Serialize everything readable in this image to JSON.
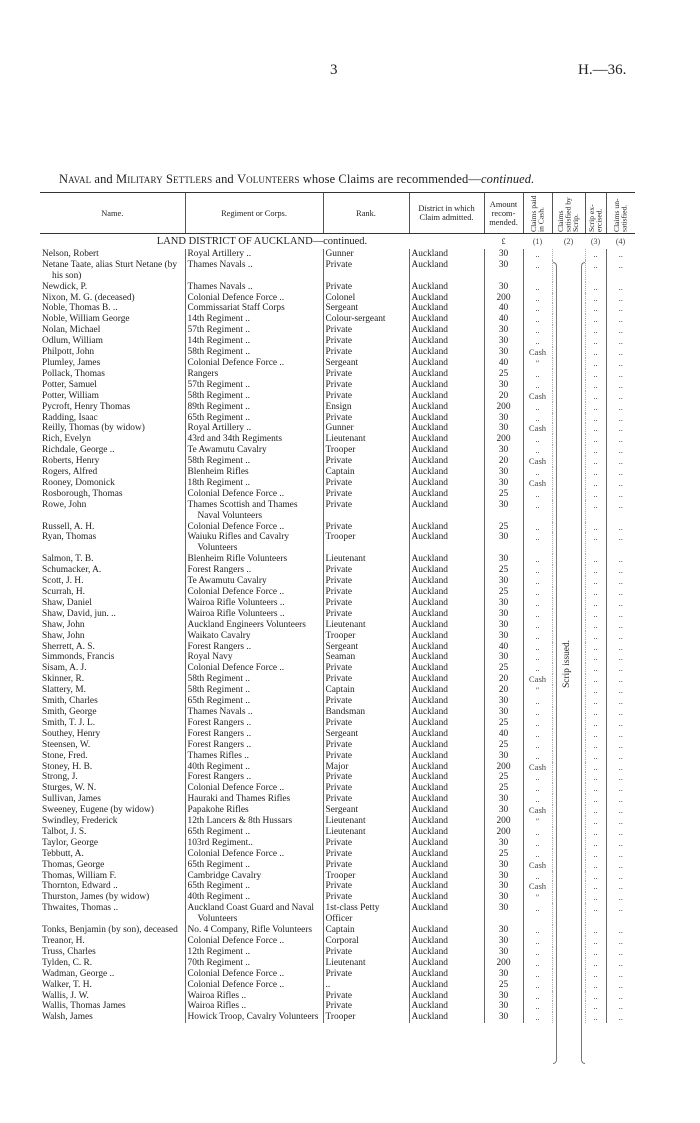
{
  "page": {
    "number": "3",
    "reference": "H.—36."
  },
  "title": {
    "part1": "Naval",
    "and1": " and ",
    "part2": "Military",
    "part3": " ",
    "part4": "Settlers",
    "and2": " and ",
    "part5": "Volunteers",
    "rest": " whose Claims are recommended—",
    "cont": "continued."
  },
  "columns": {
    "name": "Name.",
    "regiment": "Regiment or Corps.",
    "rank": "Rank.",
    "district": "District in which Claim admitted.",
    "amount": "Amount recom-mended.",
    "c1": "Claims paid in Cash.",
    "c2": "Claims satisfied by Scrip.",
    "c3": "Scrip ex-ercised.",
    "c4": "Claims un-satisfied."
  },
  "section": {
    "heading": "LAND DISTRICT OF AUCKLAND—continued.",
    "currency": "£",
    "n1": "(1)",
    "n2": "(2)",
    "n3": "(3)",
    "n4": "(4)"
  },
  "scrip_note": "Scrip issued.",
  "rows": [
    {
      "name": "Nelson, Robert",
      "regiment": "Royal Artillery ..",
      "rank": "Gunner",
      "district": "Auckland",
      "amount": "30",
      "c1": "..",
      "c3": "..",
      "c4": ".."
    },
    {
      "name": "Netane Taate, alias Sturt Netane (by his son)",
      "regiment": "Thames Navals ..",
      "rank": "Private",
      "district": "Auckland",
      "amount": "30",
      "c1": "..",
      "c3": "..",
      "c4": ".."
    },
    {
      "name": "Newdick, P.",
      "regiment": "Thames Navals ..",
      "rank": "Private",
      "district": "Auckland",
      "amount": "30",
      "c1": "..",
      "c3": "..",
      "c4": ".."
    },
    {
      "name": "Nixon, M. G. (deceased)",
      "regiment": "Colonial Defence Force ..",
      "rank": "Colonel",
      "district": "Auckland",
      "amount": "200",
      "c1": "..",
      "c3": "..",
      "c4": ".."
    },
    {
      "name": "Noble, Thomas B. ..",
      "regiment": "Commissariat Staff Corps",
      "rank": "Sergeant",
      "district": "Auckland",
      "amount": "40",
      "c1": "..",
      "c3": "..",
      "c4": ".."
    },
    {
      "name": "Noble, William George",
      "regiment": "14th Regiment ..",
      "rank": "Colour-sergeant",
      "district": "Auckland",
      "amount": "40",
      "c1": "..",
      "c3": "..",
      "c4": ".."
    },
    {
      "name": "Nolan, Michael",
      "regiment": "57th Regiment ..",
      "rank": "Private",
      "district": "Auckland",
      "amount": "30",
      "c1": "..",
      "c3": "..",
      "c4": ".."
    },
    {
      "name": "Odlum, William",
      "regiment": "14th Regiment ..",
      "rank": "Private",
      "district": "Auckland",
      "amount": "30",
      "c1": "..",
      "c3": "..",
      "c4": ".."
    },
    {
      "name": "Philpott, John",
      "regiment": "58th Regiment ..",
      "rank": "Private",
      "district": "Auckland",
      "amount": "30",
      "c1": "Cash",
      "c3": "..",
      "c4": ".."
    },
    {
      "name": "Plumley, James",
      "regiment": "Colonial Defence Force ..",
      "rank": "Sergeant",
      "district": "Auckland",
      "amount": "40",
      "c1": "″",
      "c3": "..",
      "c4": ".."
    },
    {
      "name": "Pollack, Thomas",
      "regiment": "Rangers",
      "rank": "Private",
      "district": "Auckland",
      "amount": "25",
      "c1": "..",
      "c3": "..",
      "c4": ".."
    },
    {
      "name": "Potter, Samuel",
      "regiment": "57th Regiment ..",
      "rank": "Private",
      "district": "Auckland",
      "amount": "30",
      "c1": "..",
      "c3": "..",
      "c4": ".."
    },
    {
      "name": "Potter, William",
      "regiment": "58th Regiment ..",
      "rank": "Private",
      "district": "Auckland",
      "amount": "20",
      "c1": "Cash",
      "c3": "..",
      "c4": ".."
    },
    {
      "name": "Pycroft, Henry Thomas",
      "regiment": "89th Regiment ..",
      "rank": "Ensign",
      "district": "Auckland",
      "amount": "200",
      "c1": "..",
      "c3": "..",
      "c4": ".."
    },
    {
      "name": "Radding, Isaac",
      "regiment": "65th Regiment ..",
      "rank": "Private",
      "district": "Auckland",
      "amount": "30",
      "c1": "..",
      "c3": "..",
      "c4": ".."
    },
    {
      "name": "Reilly, Thomas (by widow)",
      "regiment": "Royal Artillery ..",
      "rank": "Gunner",
      "district": "Auckland",
      "amount": "30",
      "c1": "Cash",
      "c3": "..",
      "c4": ".."
    },
    {
      "name": "Rich, Evelyn",
      "regiment": "43rd and 34th Regiments",
      "rank": "Lieutenant",
      "district": "Auckland",
      "amount": "200",
      "c1": "..",
      "c3": "..",
      "c4": ".."
    },
    {
      "name": "Richdale, George ..",
      "regiment": "Te Awamutu Cavalry",
      "rank": "Trooper",
      "district": "Auckland",
      "amount": "30",
      "c1": "..",
      "c3": "..",
      "c4": ".."
    },
    {
      "name": "Roberts, Henry",
      "regiment": "58th Regiment ..",
      "rank": "Private",
      "district": "Auckland",
      "amount": "20",
      "c1": "Cash",
      "c3": "..",
      "c4": ".."
    },
    {
      "name": "Rogers, Alfred",
      "regiment": "Blenheim Rifles",
      "rank": "Captain",
      "district": "Auckland",
      "amount": "30",
      "c1": "..",
      "c3": "..",
      "c4": ".."
    },
    {
      "name": "Rooney, Domonick",
      "regiment": "18th Regiment ..",
      "rank": "Private",
      "district": "Auckland",
      "amount": "30",
      "c1": "Cash",
      "c3": "..",
      "c4": ".."
    },
    {
      "name": "Rosborough, Thomas",
      "regiment": "Colonial Defence Force ..",
      "rank": "Private",
      "district": "Auckland",
      "amount": "25",
      "c1": "..",
      "c3": "..",
      "c4": ".."
    },
    {
      "name": "Rowe, John",
      "regiment": "Thames Scottish and Thames Naval Volunteers",
      "rank": "Private",
      "district": "Auckland",
      "amount": "30",
      "c1": "..",
      "c3": "..",
      "c4": ".."
    },
    {
      "name": "Russell, A. H.",
      "regiment": "Colonial Defence Force ..",
      "rank": "Private",
      "district": "Auckland",
      "amount": "25",
      "c1": "..",
      "c3": "..",
      "c4": ".."
    },
    {
      "name": "Ryan, Thomas",
      "regiment": "Waiuku Rifles and Cavalry Volunteers",
      "rank": "Trooper",
      "district": "Auckland",
      "amount": "30",
      "c1": "..",
      "c3": "..",
      "c4": ".."
    },
    {
      "name": "Salmon, T. B.",
      "regiment": "Blenheim Rifle Volunteers",
      "rank": "Lieutenant",
      "district": "Auckland",
      "amount": "30",
      "c1": "..",
      "c3": "..",
      "c4": ".."
    },
    {
      "name": "Schumacker, A.",
      "regiment": "Forest Rangers ..",
      "rank": "Private",
      "district": "Auckland",
      "amount": "25",
      "c1": "..",
      "c3": "..",
      "c4": ".."
    },
    {
      "name": "Scott, J. H.",
      "regiment": "Te Awamutu Cavalry",
      "rank": "Private",
      "district": "Auckland",
      "amount": "30",
      "c1": "..",
      "c3": "..",
      "c4": ".."
    },
    {
      "name": "Scurrah, H.",
      "regiment": "Colonial Defence Force ..",
      "rank": "Private",
      "district": "Auckland",
      "amount": "25",
      "c1": "..",
      "c3": "..",
      "c4": ".."
    },
    {
      "name": "Shaw, Daniel",
      "regiment": "Wairoa Rifle Volunteers ..",
      "rank": "Private",
      "district": "Auckland",
      "amount": "30",
      "c1": "..",
      "c3": "..",
      "c4": ".."
    },
    {
      "name": "Shaw, David, jun. ..",
      "regiment": "Wairoa Rifle Volunteers ..",
      "rank": "Private",
      "district": "Auckland",
      "amount": "30",
      "c1": "..",
      "c3": "..",
      "c4": ".."
    },
    {
      "name": "Shaw, John",
      "regiment": "Auckland Engineers Volunteers",
      "rank": "Lieutenant",
      "district": "Auckland",
      "amount": "30",
      "c1": "..",
      "c3": "..",
      "c4": ".."
    },
    {
      "name": "Shaw, John",
      "regiment": "Waikato Cavalry",
      "rank": "Trooper",
      "district": "Auckland",
      "amount": "30",
      "c1": "..",
      "c3": "..",
      "c4": ".."
    },
    {
      "name": "Sherrett, A. S.",
      "regiment": "Forest Rangers ..",
      "rank": "Sergeant",
      "district": "Auckland",
      "amount": "40",
      "c1": "..",
      "c3": "..",
      "c4": ".."
    },
    {
      "name": "Simmonds, Francis",
      "regiment": "Royal Navy",
      "rank": "Seaman",
      "district": "Auckland",
      "amount": "30",
      "c1": "..",
      "c3": "..",
      "c4": ".."
    },
    {
      "name": "Sisam, A. J.",
      "regiment": "Colonial Defence Force ..",
      "rank": "Private",
      "district": "Auckland",
      "amount": "25",
      "c1": "..",
      "c3": "..",
      "c4": ".."
    },
    {
      "name": "Skinner, R.",
      "regiment": "58th Regiment ..",
      "rank": "Private",
      "district": "Auckland",
      "amount": "20",
      "c1": "Cash",
      "c3": "..",
      "c4": ".."
    },
    {
      "name": "Slattery, M.",
      "regiment": "58th Regiment ..",
      "rank": "Captain",
      "district": "Auckland",
      "amount": "20",
      "c1": "″",
      "c3": "..",
      "c4": ".."
    },
    {
      "name": "Smith, Charles",
      "regiment": "65th Regiment ..",
      "rank": "Private",
      "district": "Auckland",
      "amount": "30",
      "c1": "..",
      "c3": "..",
      "c4": ".."
    },
    {
      "name": "Smith, George",
      "regiment": "Thames Navals ..",
      "rank": "Bandsman",
      "district": "Auckland",
      "amount": "30",
      "c1": "..",
      "c3": "..",
      "c4": ".."
    },
    {
      "name": "Smith, T. J. L.",
      "regiment": "Forest Rangers ..",
      "rank": "Private",
      "district": "Auckland",
      "amount": "25",
      "c1": "..",
      "c3": "..",
      "c4": ".."
    },
    {
      "name": "Southey, Henry",
      "regiment": "Forest Rangers ..",
      "rank": "Sergeant",
      "district": "Auckland",
      "amount": "40",
      "c1": "..",
      "c3": "..",
      "c4": ".."
    },
    {
      "name": "Steensen, W.",
      "regiment": "Forest Rangers ..",
      "rank": "Private",
      "district": "Auckland",
      "amount": "25",
      "c1": "..",
      "c3": "..",
      "c4": ".."
    },
    {
      "name": "Stone, Fred.",
      "regiment": "Thames Rifles ..",
      "rank": "Private",
      "district": "Auckland",
      "amount": "30",
      "c1": "..",
      "c3": "..",
      "c4": ".."
    },
    {
      "name": "Stoney, H. B.",
      "regiment": "40th Regiment ..",
      "rank": "Major",
      "district": "Auckland",
      "amount": "200",
      "c1": "Cash",
      "c3": "..",
      "c4": ".."
    },
    {
      "name": "Strong, J.",
      "regiment": "Forest Rangers ..",
      "rank": "Private",
      "district": "Auckland",
      "amount": "25",
      "c1": "..",
      "c3": "..",
      "c4": ".."
    },
    {
      "name": "Sturges, W. N.",
      "regiment": "Colonial Defence Force ..",
      "rank": "Private",
      "district": "Auckland",
      "amount": "25",
      "c1": "..",
      "c3": "..",
      "c4": ".."
    },
    {
      "name": "Sullivan, James",
      "regiment": "Hauraki and Thames Rifles",
      "rank": "Private",
      "district": "Auckland",
      "amount": "30",
      "c1": "..",
      "c3": "..",
      "c4": ".."
    },
    {
      "name": "Sweeney, Eugene (by widow)",
      "regiment": "Papakohe Rifles",
      "rank": "Sergeant",
      "district": "Auckland",
      "amount": "30",
      "c1": "Cash",
      "c3": "..",
      "c4": ".."
    },
    {
      "name": "Swindley, Frederick",
      "regiment": "12th Lancers & 8th Hussars",
      "rank": "Lieutenant",
      "district": "Auckland",
      "amount": "200",
      "c1": "″",
      "c3": "..",
      "c4": ".."
    },
    {
      "name": "Talbot, J. S.",
      "regiment": "65th Regiment ..",
      "rank": "Lieutenant",
      "district": "Auckland",
      "amount": "200",
      "c1": "..",
      "c3": "..",
      "c4": ".."
    },
    {
      "name": "Taylor, George",
      "regiment": "103rd Regiment..",
      "rank": "Private",
      "district": "Auckland",
      "amount": "30",
      "c1": "..",
      "c3": "..",
      "c4": ".."
    },
    {
      "name": "Tebbutt, A.",
      "regiment": "Colonial Defence Force ..",
      "rank": "Private",
      "district": "Auckland",
      "amount": "25",
      "c1": "..",
      "c3": "..",
      "c4": ".."
    },
    {
      "name": "Thomas, George",
      "regiment": "65th Regiment ..",
      "rank": "Private",
      "district": "Auckland",
      "amount": "30",
      "c1": "Cash",
      "c3": "..",
      "c4": ".."
    },
    {
      "name": "Thomas, William F.",
      "regiment": "Cambridge Cavalry",
      "rank": "Trooper",
      "district": "Auckland",
      "amount": "30",
      "c1": "..",
      "c3": "..",
      "c4": ".."
    },
    {
      "name": "Thornton, Edward ..",
      "regiment": "65th Regiment ..",
      "rank": "Private",
      "district": "Auckland",
      "amount": "30",
      "c1": "Cash",
      "c3": "..",
      "c4": ".."
    },
    {
      "name": "Thurston, James (by widow)",
      "regiment": "40th Regiment ..",
      "rank": "Private",
      "district": "Auckland",
      "amount": "30",
      "c1": "″",
      "c3": "..",
      "c4": ".."
    },
    {
      "name": "Thwaites, Thomas ..",
      "regiment": "Auckland Coast Guard and Naval Volunteers",
      "rank": "1st-class Petty Officer",
      "district": "Auckland",
      "amount": "30",
      "c1": "..",
      "c3": "..",
      "c4": ".."
    },
    {
      "name": "Tonks, Benjamin (by son), deceased",
      "regiment": "No. 4 Company, Rifle Volunteers",
      "rank": "Captain",
      "district": "Auckland",
      "amount": "30",
      "c1": "..",
      "c3": "..",
      "c4": ".."
    },
    {
      "name": "Treanor, H.",
      "regiment": "Colonial Defence Force ..",
      "rank": "Corporal",
      "district": "Auckland",
      "amount": "30",
      "c1": "..",
      "c3": "..",
      "c4": ".."
    },
    {
      "name": "Truss, Charles",
      "regiment": "12th Regiment ..",
      "rank": "Private",
      "district": "Auckland",
      "amount": "30",
      "c1": "..",
      "c3": "..",
      "c4": ".."
    },
    {
      "name": "Tylden, C. R.",
      "regiment": "70th Regiment ..",
      "rank": "Lieutenant",
      "district": "Auckland",
      "amount": "200",
      "c1": "..",
      "c3": "..",
      "c4": ".."
    },
    {
      "name": "Wadman, George ..",
      "regiment": "Colonial Defence Force ..",
      "rank": "Private",
      "district": "Auckland",
      "amount": "30",
      "c1": "..",
      "c3": "..",
      "c4": ".."
    },
    {
      "name": "Walker, T. H.",
      "regiment": "Colonial Defence Force ..",
      "rank": "..",
      "district": "Auckland",
      "amount": "25",
      "c1": "..",
      "c3": "..",
      "c4": ".."
    },
    {
      "name": "Wallis, J. W.",
      "regiment": "Wairoa Rifles ..",
      "rank": "Private",
      "district": "Auckland",
      "amount": "30",
      "c1": "..",
      "c3": "..",
      "c4": ".."
    },
    {
      "name": "Wallis, Thomas James",
      "regiment": "Wairoa Rifles ..",
      "rank": "Private",
      "district": "Auckland",
      "amount": "30",
      "c1": "..",
      "c3": "..",
      "c4": ".."
    },
    {
      "name": "Walsh, James",
      "regiment": "Howick Troop, Cavalry Volunteers",
      "rank": "Trooper",
      "district": "Auckland",
      "amount": "30",
      "c1": "..",
      "c3": "..",
      "c4": ".."
    }
  ]
}
